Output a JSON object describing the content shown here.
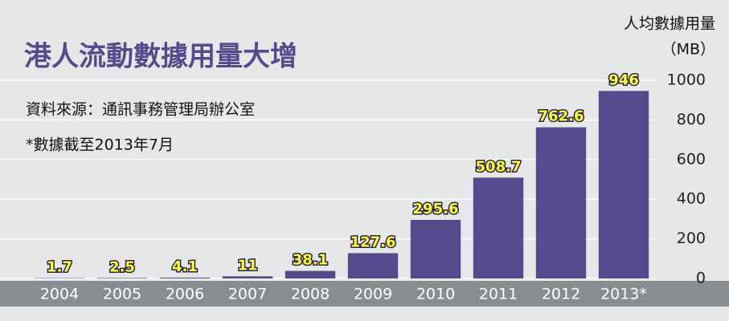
{
  "chart_data": {
    "type": "bar",
    "title": "港人流動數據用量大增",
    "source": "資料來源：通訊事務管理局辦公室",
    "note": "*數據截至2013年7月",
    "ylabel": "人均數據用量",
    "yunit": "（MB）",
    "categories": [
      "2004",
      "2005",
      "2006",
      "2007",
      "2008",
      "2009",
      "2010",
      "2011",
      "2012",
      "2013*"
    ],
    "values": [
      1.7,
      2.5,
      4.1,
      11,
      38.1,
      127.6,
      295.6,
      508.7,
      762.6,
      946
    ],
    "color": "#574a8c",
    "label_color": "#ffff33",
    "ylim": [
      0,
      1000
    ],
    "yticks": [
      0,
      200,
      400,
      600,
      800,
      1000
    ],
    "grid": true
  }
}
